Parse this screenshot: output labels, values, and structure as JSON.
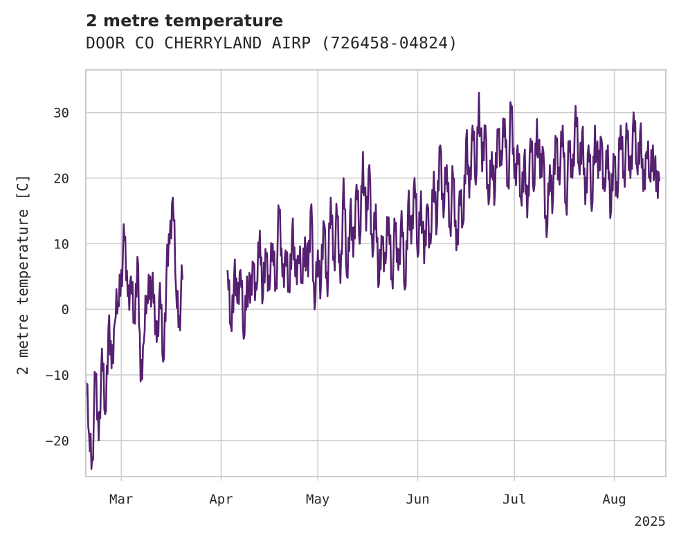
{
  "chart_data": {
    "type": "line",
    "title": "2 metre temperature",
    "subtitle": "DOOR CO CHERRYLAND AIRP (726458-04824)",
    "xlabel": "",
    "ylabel": "2 metre temperature [C]",
    "x_ticks": [
      "Mar",
      "Apr",
      "May",
      "Jun",
      "Jul",
      "Aug"
    ],
    "x_year_label": "2025",
    "y_ticks": [
      -20,
      -10,
      0,
      10,
      20,
      30
    ],
    "xlim": [
      "2025-02-18",
      "2025-08-17"
    ],
    "ylim": [
      -25.5,
      36.5
    ],
    "grid": true,
    "line_color": "#55206f",
    "series": [
      {
        "points": [
          [
            "2025-02-18",
            -11
          ],
          [
            "2025-02-19",
            -19
          ],
          [
            "2025-02-20",
            -22.5
          ],
          [
            "2025-02-21",
            -10
          ],
          [
            "2025-02-22",
            -20
          ],
          [
            "2025-02-23",
            -6
          ],
          [
            "2025-02-24",
            -16
          ],
          [
            "2025-02-25",
            -3
          ],
          [
            "2025-02-26",
            -9
          ],
          [
            "2025-02-27",
            -2
          ],
          [
            "2025-02-28",
            1
          ],
          [
            "2025-03-01",
            6
          ],
          [
            "2025-03-02",
            10.5
          ],
          [
            "2025-03-03",
            2
          ],
          [
            "2025-03-04",
            5
          ],
          [
            "2025-03-05",
            -2
          ],
          [
            "2025-03-06",
            8
          ],
          [
            "2025-03-07",
            -11
          ],
          [
            "2025-03-08",
            -5
          ],
          [
            "2025-03-09",
            2
          ],
          [
            "2025-03-10",
            5
          ],
          [
            "2025-03-11",
            1
          ],
          [
            "2025-03-12",
            -5
          ],
          [
            "2025-03-13",
            4
          ],
          [
            "2025-03-14",
            -8
          ],
          [
            "2025-03-15",
            5
          ],
          [
            "2025-03-16",
            10
          ],
          [
            "2025-03-17",
            17
          ],
          [
            "2025-03-18",
            3
          ],
          [
            "2025-03-19",
            -1
          ],
          [
            "2025-03-20",
            4.5
          ],
          null,
          [
            "2025-04-03",
            6
          ],
          [
            "2025-04-04",
            -2.5
          ],
          [
            "2025-04-05",
            5
          ],
          [
            "2025-04-06",
            1
          ],
          [
            "2025-04-07",
            6
          ],
          [
            "2025-04-08",
            -4.5
          ],
          [
            "2025-04-09",
            5
          ],
          [
            "2025-04-10",
            1
          ],
          [
            "2025-04-11",
            7
          ],
          [
            "2025-04-12",
            3
          ],
          [
            "2025-04-13",
            12
          ],
          [
            "2025-04-14",
            2
          ],
          [
            "2025-04-15",
            8
          ],
          [
            "2025-04-16",
            3
          ],
          [
            "2025-04-17",
            10
          ],
          [
            "2025-04-18",
            4
          ],
          [
            "2025-04-19",
            15
          ],
          [
            "2025-04-20",
            5
          ],
          [
            "2025-04-21",
            9
          ],
          [
            "2025-04-22",
            3
          ],
          [
            "2025-04-23",
            12
          ],
          [
            "2025-04-24",
            5
          ],
          [
            "2025-04-25",
            8
          ],
          [
            "2025-04-26",
            4
          ],
          [
            "2025-04-27",
            11
          ],
          [
            "2025-04-28",
            5
          ],
          [
            "2025-04-29",
            16
          ],
          [
            "2025-04-30",
            0
          ],
          [
            "2025-05-01",
            9
          ],
          [
            "2025-05-02",
            4
          ],
          [
            "2025-05-03",
            13
          ],
          [
            "2025-05-04",
            2
          ],
          [
            "2025-05-05",
            17
          ],
          [
            "2025-05-06",
            8
          ],
          [
            "2025-05-07",
            14
          ],
          [
            "2025-05-08",
            4
          ],
          [
            "2025-05-09",
            20
          ],
          [
            "2025-05-10",
            5
          ],
          [
            "2025-05-11",
            15
          ],
          [
            "2025-05-12",
            8
          ],
          [
            "2025-05-13",
            19
          ],
          [
            "2025-05-14",
            10
          ],
          [
            "2025-05-15",
            24
          ],
          [
            "2025-05-16",
            12
          ],
          [
            "2025-05-17",
            22
          ],
          [
            "2025-05-18",
            8
          ],
          [
            "2025-05-19",
            16
          ],
          [
            "2025-05-20",
            4
          ],
          [
            "2025-05-21",
            10
          ],
          [
            "2025-05-22",
            7
          ],
          [
            "2025-05-23",
            14
          ],
          [
            "2025-05-24",
            5
          ],
          [
            "2025-05-25",
            12
          ],
          [
            "2025-05-26",
            6
          ],
          [
            "2025-05-27",
            15
          ],
          [
            "2025-05-28",
            3
          ],
          [
            "2025-05-29",
            16
          ],
          [
            "2025-05-30",
            10
          ],
          [
            "2025-05-31",
            20
          ],
          [
            "2025-06-01",
            8
          ],
          [
            "2025-06-02",
            18
          ],
          [
            "2025-06-03",
            7
          ],
          [
            "2025-06-04",
            16
          ],
          [
            "2025-06-05",
            10
          ],
          [
            "2025-06-06",
            21
          ],
          [
            "2025-06-07",
            13
          ],
          [
            "2025-06-08",
            25
          ],
          [
            "2025-06-09",
            14
          ],
          [
            "2025-06-10",
            22
          ],
          [
            "2025-06-11",
            13
          ],
          [
            "2025-06-12",
            20
          ],
          [
            "2025-06-13",
            9
          ],
          [
            "2025-06-14",
            18
          ],
          [
            "2025-06-15",
            13
          ],
          [
            "2025-06-16",
            26
          ],
          [
            "2025-06-17",
            17
          ],
          [
            "2025-06-18",
            28
          ],
          [
            "2025-06-19",
            19
          ],
          [
            "2025-06-20",
            33
          ],
          [
            "2025-06-21",
            21
          ],
          [
            "2025-06-22",
            28
          ],
          [
            "2025-06-23",
            16
          ],
          [
            "2025-06-24",
            24
          ],
          [
            "2025-06-25",
            18
          ],
          [
            "2025-06-26",
            27
          ],
          [
            "2025-06-27",
            22
          ],
          [
            "2025-06-28",
            29
          ],
          [
            "2025-06-29",
            19
          ],
          [
            "2025-06-30",
            31
          ],
          [
            "2025-07-01",
            20
          ],
          [
            "2025-07-02",
            25
          ],
          [
            "2025-07-03",
            17
          ],
          [
            "2025-07-04",
            23
          ],
          [
            "2025-07-05",
            14
          ],
          [
            "2025-07-06",
            26
          ],
          [
            "2025-07-07",
            18
          ],
          [
            "2025-07-08",
            29
          ],
          [
            "2025-07-09",
            20
          ],
          [
            "2025-07-10",
            24
          ],
          [
            "2025-07-11",
            11
          ],
          [
            "2025-07-12",
            22
          ],
          [
            "2025-07-13",
            17
          ],
          [
            "2025-07-14",
            26
          ],
          [
            "2025-07-15",
            19
          ],
          [
            "2025-07-16",
            28
          ],
          [
            "2025-07-17",
            16
          ],
          [
            "2025-07-18",
            24
          ],
          [
            "2025-07-19",
            20
          ],
          [
            "2025-07-20",
            31
          ],
          [
            "2025-07-21",
            22
          ],
          [
            "2025-07-22",
            27
          ],
          [
            "2025-07-23",
            16
          ],
          [
            "2025-07-24",
            25
          ],
          [
            "2025-07-25",
            15
          ],
          [
            "2025-07-26",
            28
          ],
          [
            "2025-07-27",
            20
          ],
          [
            "2025-07-28",
            26
          ],
          [
            "2025-07-29",
            18
          ],
          [
            "2025-07-30",
            25
          ],
          [
            "2025-07-31",
            15
          ],
          [
            "2025-08-01",
            23
          ],
          [
            "2025-08-02",
            17
          ],
          [
            "2025-08-03",
            28
          ],
          [
            "2025-08-04",
            21
          ],
          [
            "2025-08-05",
            26
          ],
          [
            "2025-08-06",
            20
          ],
          [
            "2025-08-07",
            30
          ],
          [
            "2025-08-08",
            22
          ],
          [
            "2025-08-09",
            27
          ],
          [
            "2025-08-10",
            18
          ],
          [
            "2025-08-11",
            24
          ],
          [
            "2025-08-12",
            20
          ],
          [
            "2025-08-13",
            25
          ],
          [
            "2025-08-14",
            18
          ],
          [
            "2025-08-15",
            19.5
          ]
        ]
      }
    ]
  }
}
